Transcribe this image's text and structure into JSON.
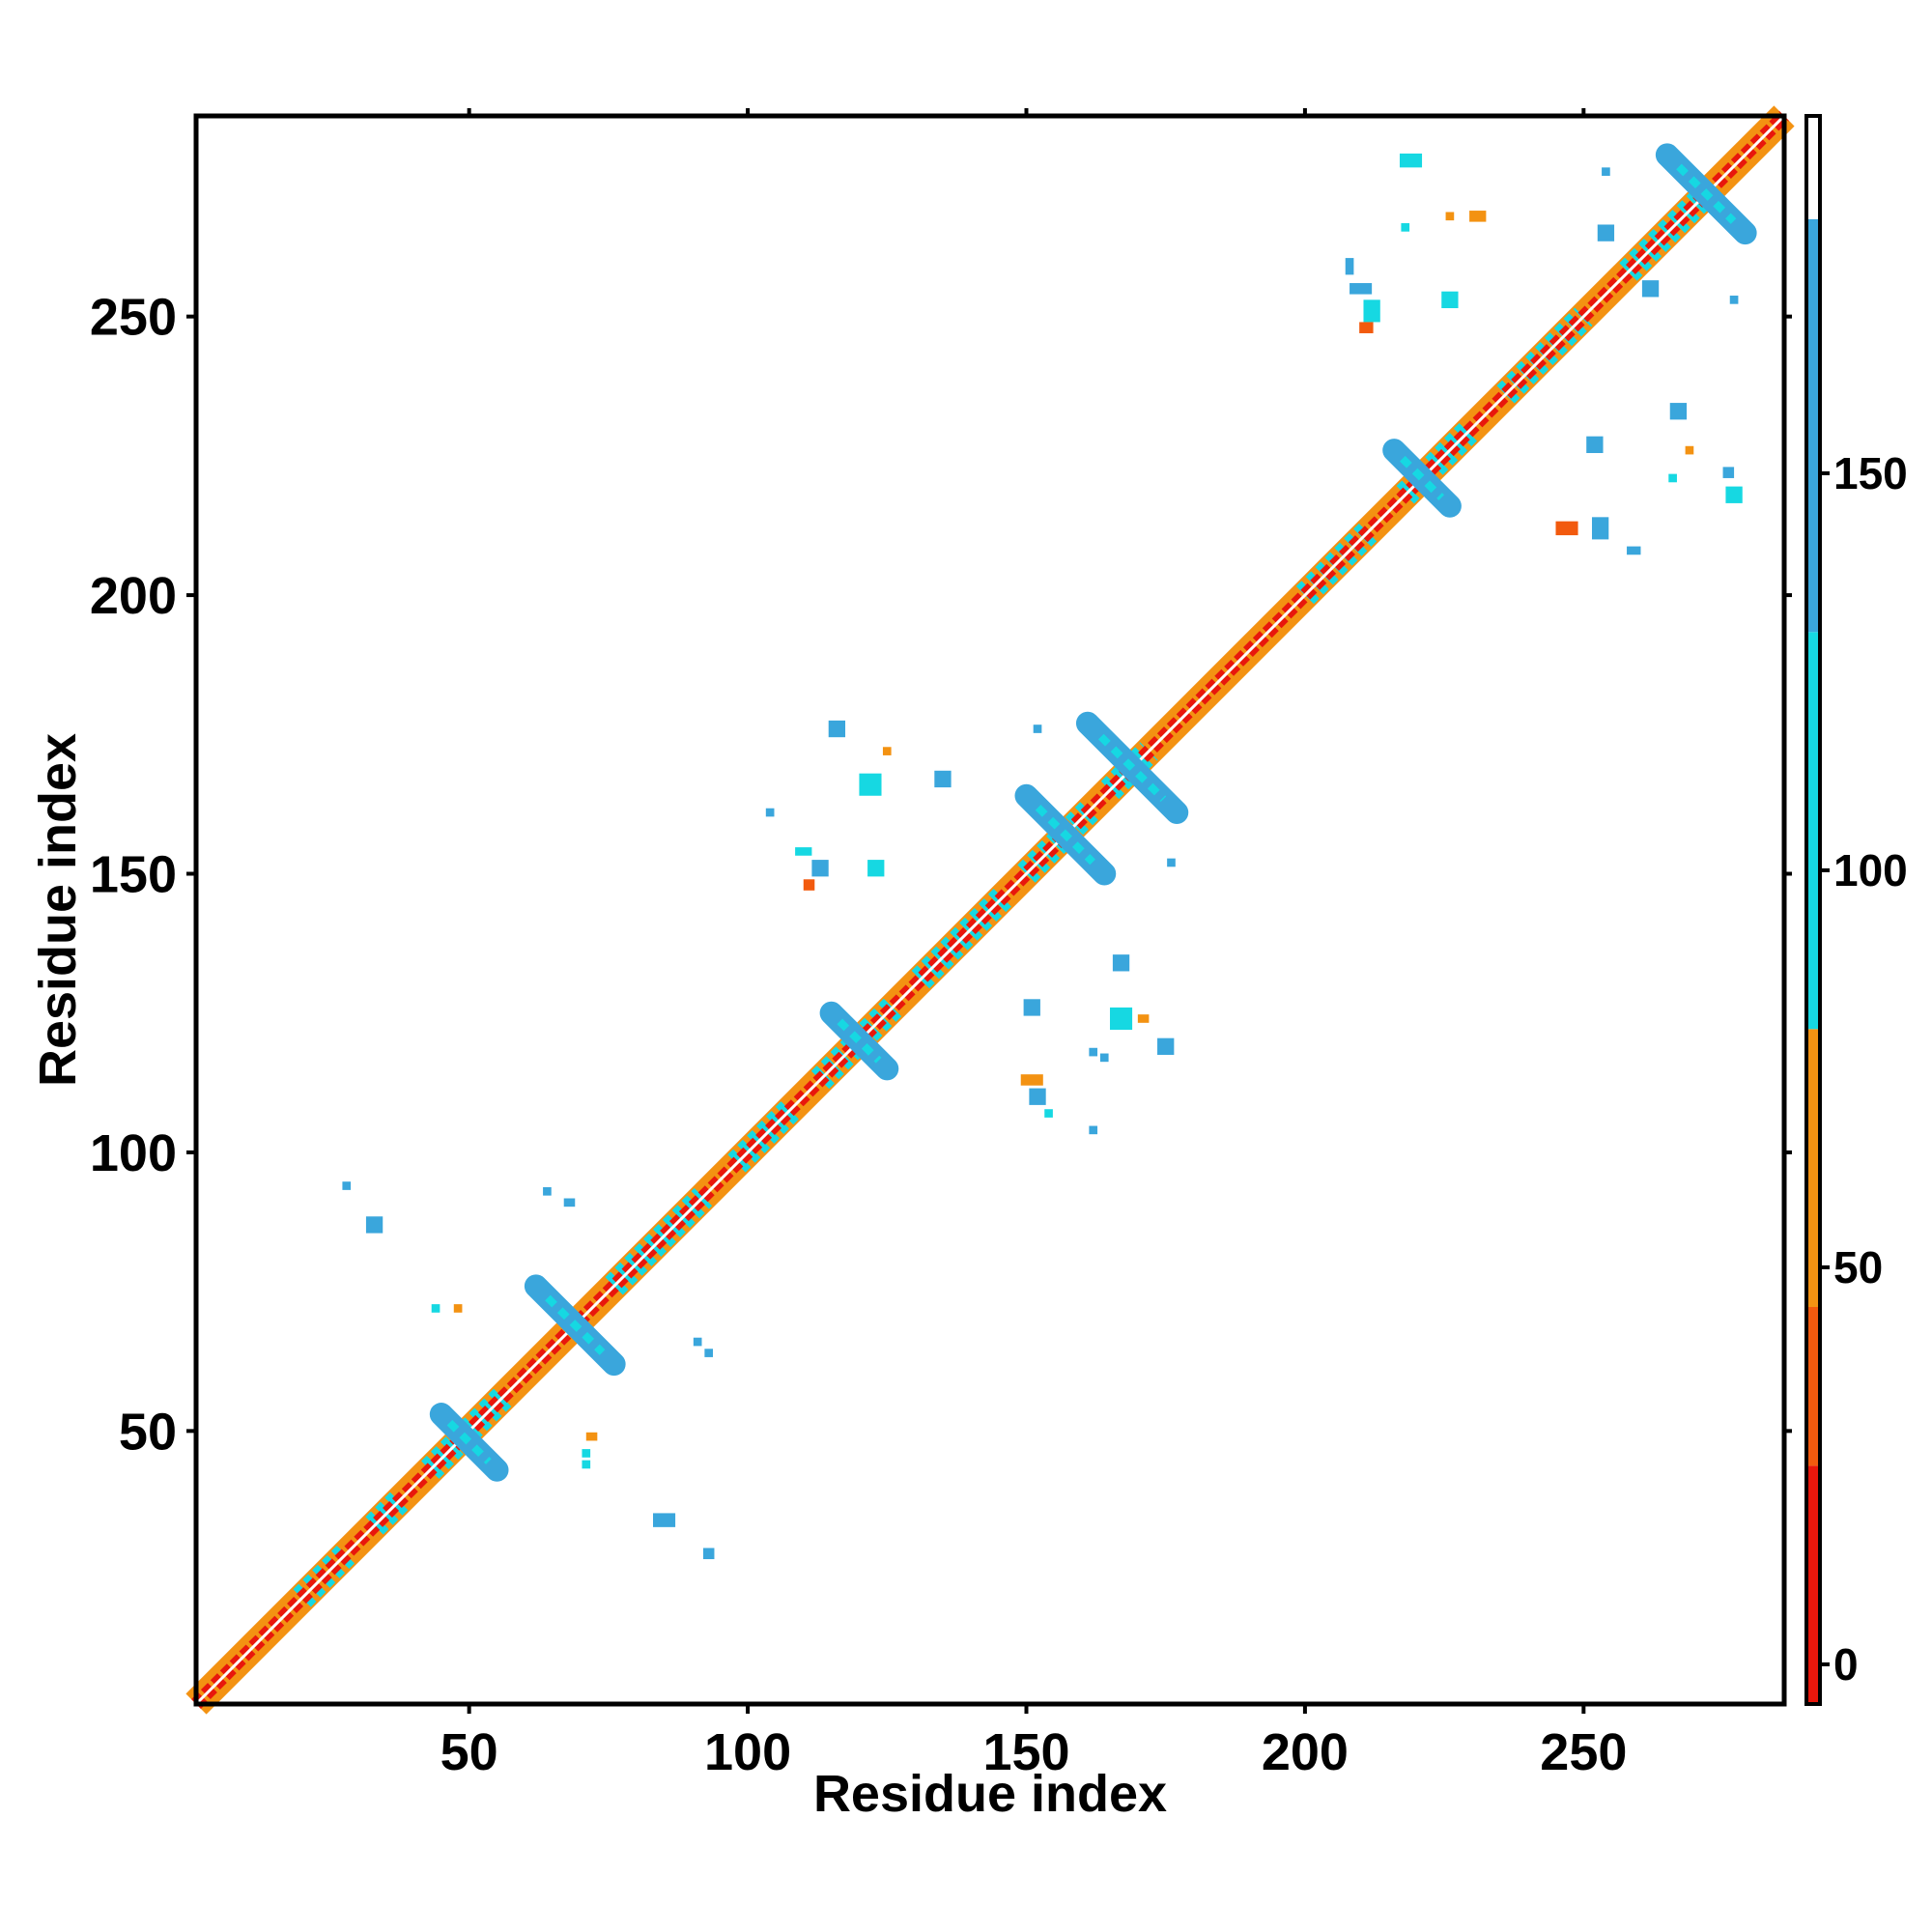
{
  "chart_data": {
    "type": "heatmap",
    "title": "",
    "xlabel": "Residue index",
    "ylabel": "Residue index",
    "xlim": [
      1,
      286
    ],
    "ylim": [
      1,
      286
    ],
    "xticks": [
      50,
      100,
      150,
      200,
      250
    ],
    "yticks": [
      50,
      100,
      150,
      200,
      250
    ],
    "grid": false,
    "colorbar": {
      "ticks": [
        0,
        50,
        100,
        150
      ],
      "range": [
        -5,
        195
      ],
      "bands": [
        {
          "from": -5,
          "to": 25,
          "color": "#e8170c"
        },
        {
          "from": 25,
          "to": 45,
          "color": "#f25a0e"
        },
        {
          "from": 45,
          "to": 80,
          "color": "#f39212"
        },
        {
          "from": 80,
          "to": 130,
          "color": "#16d8e2"
        },
        {
          "from": 130,
          "to": 182,
          "color": "#3aa6dc"
        },
        {
          "from": 182,
          "to": 195,
          "color": "#ffffff"
        }
      ]
    },
    "diagonal": {
      "from": 1,
      "to": 286,
      "outer_color": "#f39212",
      "inner_color": "#e8170c",
      "accent_color": "#16d8e2",
      "accent_segments": [
        [
          20,
          28
        ],
        [
          33,
          38
        ],
        [
          43,
          56
        ],
        [
          76,
          92
        ],
        [
          98,
          108
        ],
        [
          113,
          126
        ],
        [
          131,
          146
        ],
        [
          150,
          162
        ],
        [
          165,
          172
        ],
        [
          200,
          212
        ],
        [
          218,
          230
        ],
        [
          236,
          250
        ],
        [
          258,
          272
        ]
      ]
    },
    "crosses": [
      {
        "x": 69,
        "y": 69,
        "arm": 7,
        "color": "#3aa6dc"
      },
      {
        "x": 50,
        "y": 48,
        "arm": 5,
        "color": "#3aa6dc"
      },
      {
        "x": 120,
        "y": 120,
        "arm": 5,
        "color": "#3aa6dc"
      },
      {
        "x": 157,
        "y": 157,
        "arm": 7,
        "color": "#3aa6dc"
      },
      {
        "x": 169,
        "y": 169,
        "arm": 8,
        "color": "#3aa6dc"
      },
      {
        "x": 221,
        "y": 221,
        "arm": 5,
        "color": "#3aa6dc"
      },
      {
        "x": 272,
        "y": 272,
        "arm": 7,
        "color": "#3aa6dc"
      }
    ],
    "spots": [
      {
        "x": 28,
        "y": 94,
        "w": 1.5,
        "h": 1.5,
        "color": "#3aa6dc"
      },
      {
        "x": 33,
        "y": 87,
        "w": 3,
        "h": 3,
        "color": "#3aa6dc"
      },
      {
        "x": 44,
        "y": 72,
        "w": 1.5,
        "h": 1.5,
        "color": "#16d8e2"
      },
      {
        "x": 48,
        "y": 72,
        "w": 1.5,
        "h": 1.5,
        "color": "#f39212"
      },
      {
        "x": 64,
        "y": 93,
        "w": 1.5,
        "h": 1.5,
        "color": "#3aa6dc"
      },
      {
        "x": 68,
        "y": 91,
        "w": 2,
        "h": 1.5,
        "color": "#3aa6dc"
      },
      {
        "x": 72,
        "y": 49,
        "w": 2,
        "h": 1.5,
        "color": "#f39212"
      },
      {
        "x": 71,
        "y": 46,
        "w": 1.5,
        "h": 1.5,
        "color": "#16d8e2"
      },
      {
        "x": 71,
        "y": 44,
        "w": 1.5,
        "h": 1.5,
        "color": "#16d8e2"
      },
      {
        "x": 85,
        "y": 34,
        "w": 4,
        "h": 2.5,
        "color": "#3aa6dc"
      },
      {
        "x": 93,
        "y": 28,
        "w": 2,
        "h": 2,
        "color": "#3aa6dc"
      },
      {
        "x": 91,
        "y": 66,
        "w": 1.5,
        "h": 1.5,
        "color": "#3aa6dc"
      },
      {
        "x": 93,
        "y": 64,
        "w": 1.5,
        "h": 1.5,
        "color": "#3aa6dc"
      },
      {
        "x": 116,
        "y": 176,
        "w": 3,
        "h": 3,
        "color": "#3aa6dc"
      },
      {
        "x": 122,
        "y": 166,
        "w": 4,
        "h": 4,
        "color": "#16d8e2"
      },
      {
        "x": 125,
        "y": 172,
        "w": 1.5,
        "h": 1.5,
        "color": "#f39212"
      },
      {
        "x": 135,
        "y": 167,
        "w": 3,
        "h": 3,
        "color": "#3aa6dc"
      },
      {
        "x": 104,
        "y": 161,
        "w": 1.5,
        "h": 1.5,
        "color": "#3aa6dc"
      },
      {
        "x": 110,
        "y": 154,
        "w": 3,
        "h": 1.5,
        "color": "#16d8e2"
      },
      {
        "x": 113,
        "y": 151,
        "w": 3,
        "h": 3,
        "color": "#3aa6dc"
      },
      {
        "x": 111,
        "y": 148,
        "w": 2,
        "h": 2,
        "color": "#f25a0e"
      },
      {
        "x": 123,
        "y": 151,
        "w": 3,
        "h": 3,
        "color": "#16d8e2"
      },
      {
        "x": 152,
        "y": 176,
        "w": 1.5,
        "h": 1.5,
        "color": "#3aa6dc"
      },
      {
        "x": 176,
        "y": 152,
        "w": 1.5,
        "h": 1.5,
        "color": "#3aa6dc"
      },
      {
        "x": 151,
        "y": 126,
        "w": 3,
        "h": 3,
        "color": "#3aa6dc"
      },
      {
        "x": 167,
        "y": 134,
        "w": 3,
        "h": 3,
        "color": "#3aa6dc"
      },
      {
        "x": 167,
        "y": 124,
        "w": 4,
        "h": 4,
        "color": "#16d8e2"
      },
      {
        "x": 171,
        "y": 124,
        "w": 2,
        "h": 1.5,
        "color": "#f39212"
      },
      {
        "x": 175,
        "y": 119,
        "w": 3,
        "h": 3,
        "color": "#3aa6dc"
      },
      {
        "x": 162,
        "y": 118,
        "w": 1.5,
        "h": 1.5,
        "color": "#3aa6dc"
      },
      {
        "x": 164,
        "y": 117,
        "w": 1.5,
        "h": 1.5,
        "color": "#3aa6dc"
      },
      {
        "x": 151,
        "y": 113,
        "w": 4,
        "h": 2,
        "color": "#f39212"
      },
      {
        "x": 152,
        "y": 110,
        "w": 3,
        "h": 3,
        "color": "#3aa6dc"
      },
      {
        "x": 154,
        "y": 107,
        "w": 1.5,
        "h": 1.5,
        "color": "#16d8e2"
      },
      {
        "x": 162,
        "y": 104,
        "w": 1.5,
        "h": 1.5,
        "color": "#3aa6dc"
      },
      {
        "x": 219,
        "y": 278,
        "w": 4,
        "h": 2.5,
        "color": "#16d8e2"
      },
      {
        "x": 226,
        "y": 268,
        "w": 1.5,
        "h": 1.5,
        "color": "#f39212"
      },
      {
        "x": 231,
        "y": 268,
        "w": 3,
        "h": 2,
        "color": "#f39212"
      },
      {
        "x": 218,
        "y": 266,
        "w": 1.5,
        "h": 1.5,
        "color": "#16d8e2"
      },
      {
        "x": 208,
        "y": 259,
        "w": 1.5,
        "h": 3,
        "color": "#3aa6dc"
      },
      {
        "x": 210,
        "y": 255,
        "w": 4,
        "h": 2,
        "color": "#3aa6dc"
      },
      {
        "x": 212,
        "y": 251,
        "w": 3,
        "h": 4,
        "color": "#16d8e2"
      },
      {
        "x": 211,
        "y": 248,
        "w": 2.5,
        "h": 2,
        "color": "#f25a0e"
      },
      {
        "x": 226,
        "y": 253,
        "w": 3,
        "h": 3,
        "color": "#16d8e2"
      },
      {
        "x": 254,
        "y": 276,
        "w": 1.5,
        "h": 1.5,
        "color": "#3aa6dc"
      },
      {
        "x": 254,
        "y": 265,
        "w": 3,
        "h": 3,
        "color": "#3aa6dc"
      },
      {
        "x": 262,
        "y": 255,
        "w": 3,
        "h": 3,
        "color": "#3aa6dc"
      },
      {
        "x": 277,
        "y": 253,
        "w": 1.5,
        "h": 1.5,
        "color": "#3aa6dc"
      },
      {
        "x": 252,
        "y": 227,
        "w": 3,
        "h": 3,
        "color": "#3aa6dc"
      },
      {
        "x": 267,
        "y": 233,
        "w": 3,
        "h": 3,
        "color": "#3aa6dc"
      },
      {
        "x": 269,
        "y": 226,
        "w": 1.5,
        "h": 1.5,
        "color": "#f39212"
      },
      {
        "x": 266,
        "y": 221,
        "w": 1.5,
        "h": 1.5,
        "color": "#16d8e2"
      },
      {
        "x": 276,
        "y": 222,
        "w": 2,
        "h": 2,
        "color": "#3aa6dc"
      },
      {
        "x": 277,
        "y": 218,
        "w": 3,
        "h": 3,
        "color": "#16d8e2"
      },
      {
        "x": 247,
        "y": 212,
        "w": 4,
        "h": 2.5,
        "color": "#f25a0e"
      },
      {
        "x": 253,
        "y": 212,
        "w": 3,
        "h": 4,
        "color": "#3aa6dc"
      },
      {
        "x": 259,
        "y": 208,
        "w": 2.5,
        "h": 1.5,
        "color": "#3aa6dc"
      }
    ]
  }
}
